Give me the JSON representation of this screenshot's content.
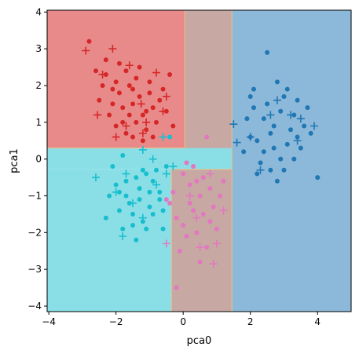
{
  "chart_data": {
    "type": "scatter",
    "xlabel": "pca0",
    "ylabel": "pca1",
    "xlim": [
      -4.05,
      5.0
    ],
    "ylim": [
      -4.15,
      4.05
    ],
    "xticks": [
      -4,
      -2,
      0,
      2,
      4
    ],
    "yticks": [
      -4,
      -3,
      -2,
      -1,
      0,
      1,
      2,
      3,
      4
    ],
    "regions": [
      {
        "class": "red",
        "color": "#e88a8a",
        "x": [
          -4.05,
          0.05
        ],
        "y": [
          0.3,
          4.05
        ]
      },
      {
        "class": "brown",
        "color": "#c7a8a2",
        "x": [
          0.05,
          1.45
        ],
        "y": [
          -0.28,
          4.05
        ]
      },
      {
        "class": "blue",
        "color": "#8cb8d9",
        "x": [
          1.45,
          5.0
        ],
        "y": [
          -4.15,
          4.05
        ]
      },
      {
        "class": "cyan",
        "color": "#8adfe6",
        "x": [
          -4.05,
          1.45
        ],
        "y": [
          -0.28,
          0.3
        ]
      },
      {
        "class": "cyan",
        "color": "#8adfe6",
        "x": [
          -4.05,
          -0.35
        ],
        "y": [
          -4.15,
          -0.28
        ]
      },
      {
        "class": "brown",
        "color": "#c7a8a2",
        "x": [
          -0.35,
          1.45
        ],
        "y": [
          -4.15,
          -0.28
        ]
      }
    ],
    "series": [
      {
        "color": "#d62728",
        "marker": "dot",
        "points": [
          [
            -2.8,
            3.2
          ],
          [
            -2.3,
            2.3
          ],
          [
            -2.1,
            1.9
          ],
          [
            -1.9,
            1.8
          ],
          [
            -1.7,
            2.4
          ],
          [
            -1.5,
            1.5
          ],
          [
            -1.2,
            1.2
          ],
          [
            -1.0,
            2.1
          ],
          [
            -0.8,
            1.0
          ],
          [
            -0.6,
            1.9
          ],
          [
            -0.4,
            2.3
          ],
          [
            -2.5,
            1.6
          ],
          [
            -2.2,
            1.2
          ],
          [
            -1.8,
            1.0
          ],
          [
            -1.6,
            2.0
          ],
          [
            -1.4,
            2.2
          ],
          [
            -1.3,
            1.7
          ],
          [
            -1.1,
            0.8
          ],
          [
            -0.9,
            1.4
          ],
          [
            -0.7,
            1.6
          ],
          [
            -2.0,
            0.9
          ],
          [
            -1.5,
            0.6
          ],
          [
            -1.2,
            0.5
          ],
          [
            -2.3,
            2.7
          ],
          [
            -2.0,
            2.1
          ],
          [
            -1.8,
            1.4
          ],
          [
            -1.6,
            1.2
          ],
          [
            -1.4,
            1.0
          ],
          [
            -1.0,
            1.8
          ],
          [
            -0.5,
            1.3
          ],
          [
            -0.3,
            0.9
          ],
          [
            -2.4,
            2.0
          ],
          [
            -2.1,
            1.5
          ],
          [
            -1.7,
            0.7
          ],
          [
            -1.9,
            2.6
          ],
          [
            -1.3,
            2.5
          ],
          [
            -1.1,
            1.3
          ],
          [
            -0.9,
            0.6
          ],
          [
            -2.6,
            2.4
          ],
          [
            -1.5,
            1.9
          ]
        ]
      },
      {
        "color": "#d62728",
        "marker": "plus",
        "points": [
          [
            -2.9,
            2.95
          ],
          [
            -2.1,
            3.0
          ],
          [
            -2.4,
            2.3
          ],
          [
            -1.6,
            2.55
          ],
          [
            -0.8,
            2.35
          ],
          [
            -1.25,
            1.5
          ],
          [
            -0.5,
            1.7
          ],
          [
            -2.55,
            1.2
          ],
          [
            -1.1,
            1.0
          ],
          [
            -0.6,
            1.3
          ],
          [
            -2.0,
            0.6
          ],
          [
            -1.2,
            0.7
          ],
          [
            -1.7,
            0.9
          ]
        ]
      },
      {
        "color": "#1f77b4",
        "marker": "dot",
        "points": [
          [
            2.1,
            1.9
          ],
          [
            2.5,
            2.9
          ],
          [
            2.8,
            2.1
          ],
          [
            3.0,
            1.7
          ],
          [
            3.3,
            1.2
          ],
          [
            3.6,
            0.9
          ],
          [
            2.2,
            0.5
          ],
          [
            2.4,
            0.2
          ],
          [
            2.6,
            -0.3
          ],
          [
            2.9,
            0.0
          ],
          [
            3.1,
            0.4
          ],
          [
            3.4,
            0.6
          ],
          [
            1.9,
            1.1
          ],
          [
            2.0,
            0.6
          ],
          [
            2.3,
            -0.1
          ],
          [
            2.7,
            0.9
          ],
          [
            3.0,
            -0.3
          ],
          [
            3.2,
            0.8
          ],
          [
            3.5,
            0.3
          ],
          [
            2.1,
            1.4
          ],
          [
            2.5,
            1.5
          ],
          [
            2.8,
            -0.6
          ],
          [
            3.7,
            1.4
          ],
          [
            4.0,
            -0.5
          ],
          [
            2.4,
            1.1
          ],
          [
            2.9,
            1.3
          ],
          [
            3.3,
            0.0
          ],
          [
            1.8,
            0.2
          ],
          [
            2.2,
            -0.4
          ],
          [
            2.6,
            0.7
          ],
          [
            3.1,
            1.9
          ],
          [
            3.8,
            0.7
          ],
          [
            2.0,
            1.7
          ],
          [
            2.7,
            0.3
          ],
          [
            3.4,
            1.6
          ]
        ]
      },
      {
        "color": "#1f77b4",
        "marker": "plus",
        "points": [
          [
            1.5,
            0.95
          ],
          [
            1.6,
            0.45
          ],
          [
            2.0,
            0.6
          ],
          [
            2.3,
            -0.3
          ],
          [
            2.6,
            1.2
          ],
          [
            3.2,
            1.2
          ],
          [
            3.4,
            0.5
          ],
          [
            3.5,
            1.1
          ],
          [
            3.9,
            0.9
          ],
          [
            2.8,
            1.6
          ]
        ]
      },
      {
        "color": "#17becf",
        "marker": "dot",
        "points": [
          [
            -2.2,
            -1.0
          ],
          [
            -1.9,
            -1.4
          ],
          [
            -1.7,
            -0.6
          ],
          [
            -1.5,
            -1.8
          ],
          [
            -1.3,
            -1.1
          ],
          [
            -1.1,
            -0.4
          ],
          [
            -0.9,
            -1.5
          ],
          [
            -0.7,
            -0.9
          ],
          [
            -0.5,
            -0.2
          ],
          [
            -2.0,
            -0.7
          ],
          [
            -1.8,
            -1.9
          ],
          [
            -1.6,
            -1.2
          ],
          [
            -1.4,
            -0.5
          ],
          [
            -1.2,
            -1.7
          ],
          [
            -1.0,
            -1.3
          ],
          [
            -0.8,
            -0.3
          ],
          [
            -0.6,
            -1.9
          ],
          [
            -2.1,
            -0.2
          ],
          [
            -1.9,
            -0.9
          ],
          [
            -1.5,
            -1.5
          ],
          [
            -1.3,
            -0.8
          ],
          [
            -1.1,
            -1.9
          ],
          [
            -0.9,
            -0.6
          ],
          [
            -0.7,
            -1.1
          ],
          [
            -2.3,
            -1.6
          ],
          [
            -1.7,
            -1.0
          ],
          [
            -1.4,
            -2.2
          ],
          [
            -1.2,
            -0.3
          ],
          [
            -0.4,
            0.6
          ],
          [
            -0.6,
            -1.4
          ],
          [
            -1.8,
            0.1
          ],
          [
            -1.0,
            -0.9
          ]
        ]
      },
      {
        "color": "#17becf",
        "marker": "plus",
        "points": [
          [
            -2.6,
            -0.5
          ],
          [
            -2.0,
            -0.9
          ],
          [
            -1.8,
            -2.1
          ],
          [
            -1.2,
            0.25
          ],
          [
            -0.9,
            0.0
          ],
          [
            -0.6,
            0.6
          ],
          [
            -0.5,
            -0.4
          ],
          [
            -0.3,
            -0.2
          ],
          [
            -1.5,
            -1.2
          ],
          [
            -1.2,
            -1.6
          ],
          [
            -0.8,
            -0.7
          ],
          [
            -1.7,
            -0.4
          ]
        ]
      },
      {
        "color": "#e377c2",
        "marker": "dot",
        "points": [
          [
            -0.3,
            -0.9
          ],
          [
            0.0,
            -0.4
          ],
          [
            0.2,
            -1.2
          ],
          [
            0.4,
            -0.6
          ],
          [
            0.6,
            -1.5
          ],
          [
            0.8,
            -0.8
          ],
          [
            1.0,
            -1.9
          ],
          [
            -0.2,
            -1.6
          ],
          [
            0.1,
            -2.1
          ],
          [
            0.3,
            -0.2
          ],
          [
            0.5,
            -1.0
          ],
          [
            0.7,
            -2.4
          ],
          [
            0.9,
            -1.3
          ],
          [
            -0.4,
            -1.2
          ],
          [
            0.0,
            -1.8
          ],
          [
            0.2,
            -0.7
          ],
          [
            0.4,
            -2.0
          ],
          [
            0.6,
            -0.5
          ],
          [
            0.8,
            -1.7
          ],
          [
            1.1,
            -1.0
          ],
          [
            -0.1,
            -2.5
          ],
          [
            0.3,
            -1.4
          ],
          [
            0.5,
            -2.8
          ],
          [
            -0.2,
            -3.5
          ],
          [
            0.7,
            0.6
          ],
          [
            1.2,
            -0.6
          ],
          [
            -0.5,
            -1.1
          ],
          [
            0.1,
            -0.1
          ]
        ]
      },
      {
        "color": "#e377c2",
        "marker": "plus",
        "points": [
          [
            -0.5,
            -2.3
          ],
          [
            0.5,
            -2.4
          ],
          [
            1.0,
            -2.3
          ],
          [
            0.2,
            -1.0
          ],
          [
            0.8,
            -0.4
          ],
          [
            1.2,
            -1.4
          ],
          [
            0.9,
            -2.85
          ],
          [
            0.4,
            -1.6
          ]
        ]
      }
    ]
  }
}
